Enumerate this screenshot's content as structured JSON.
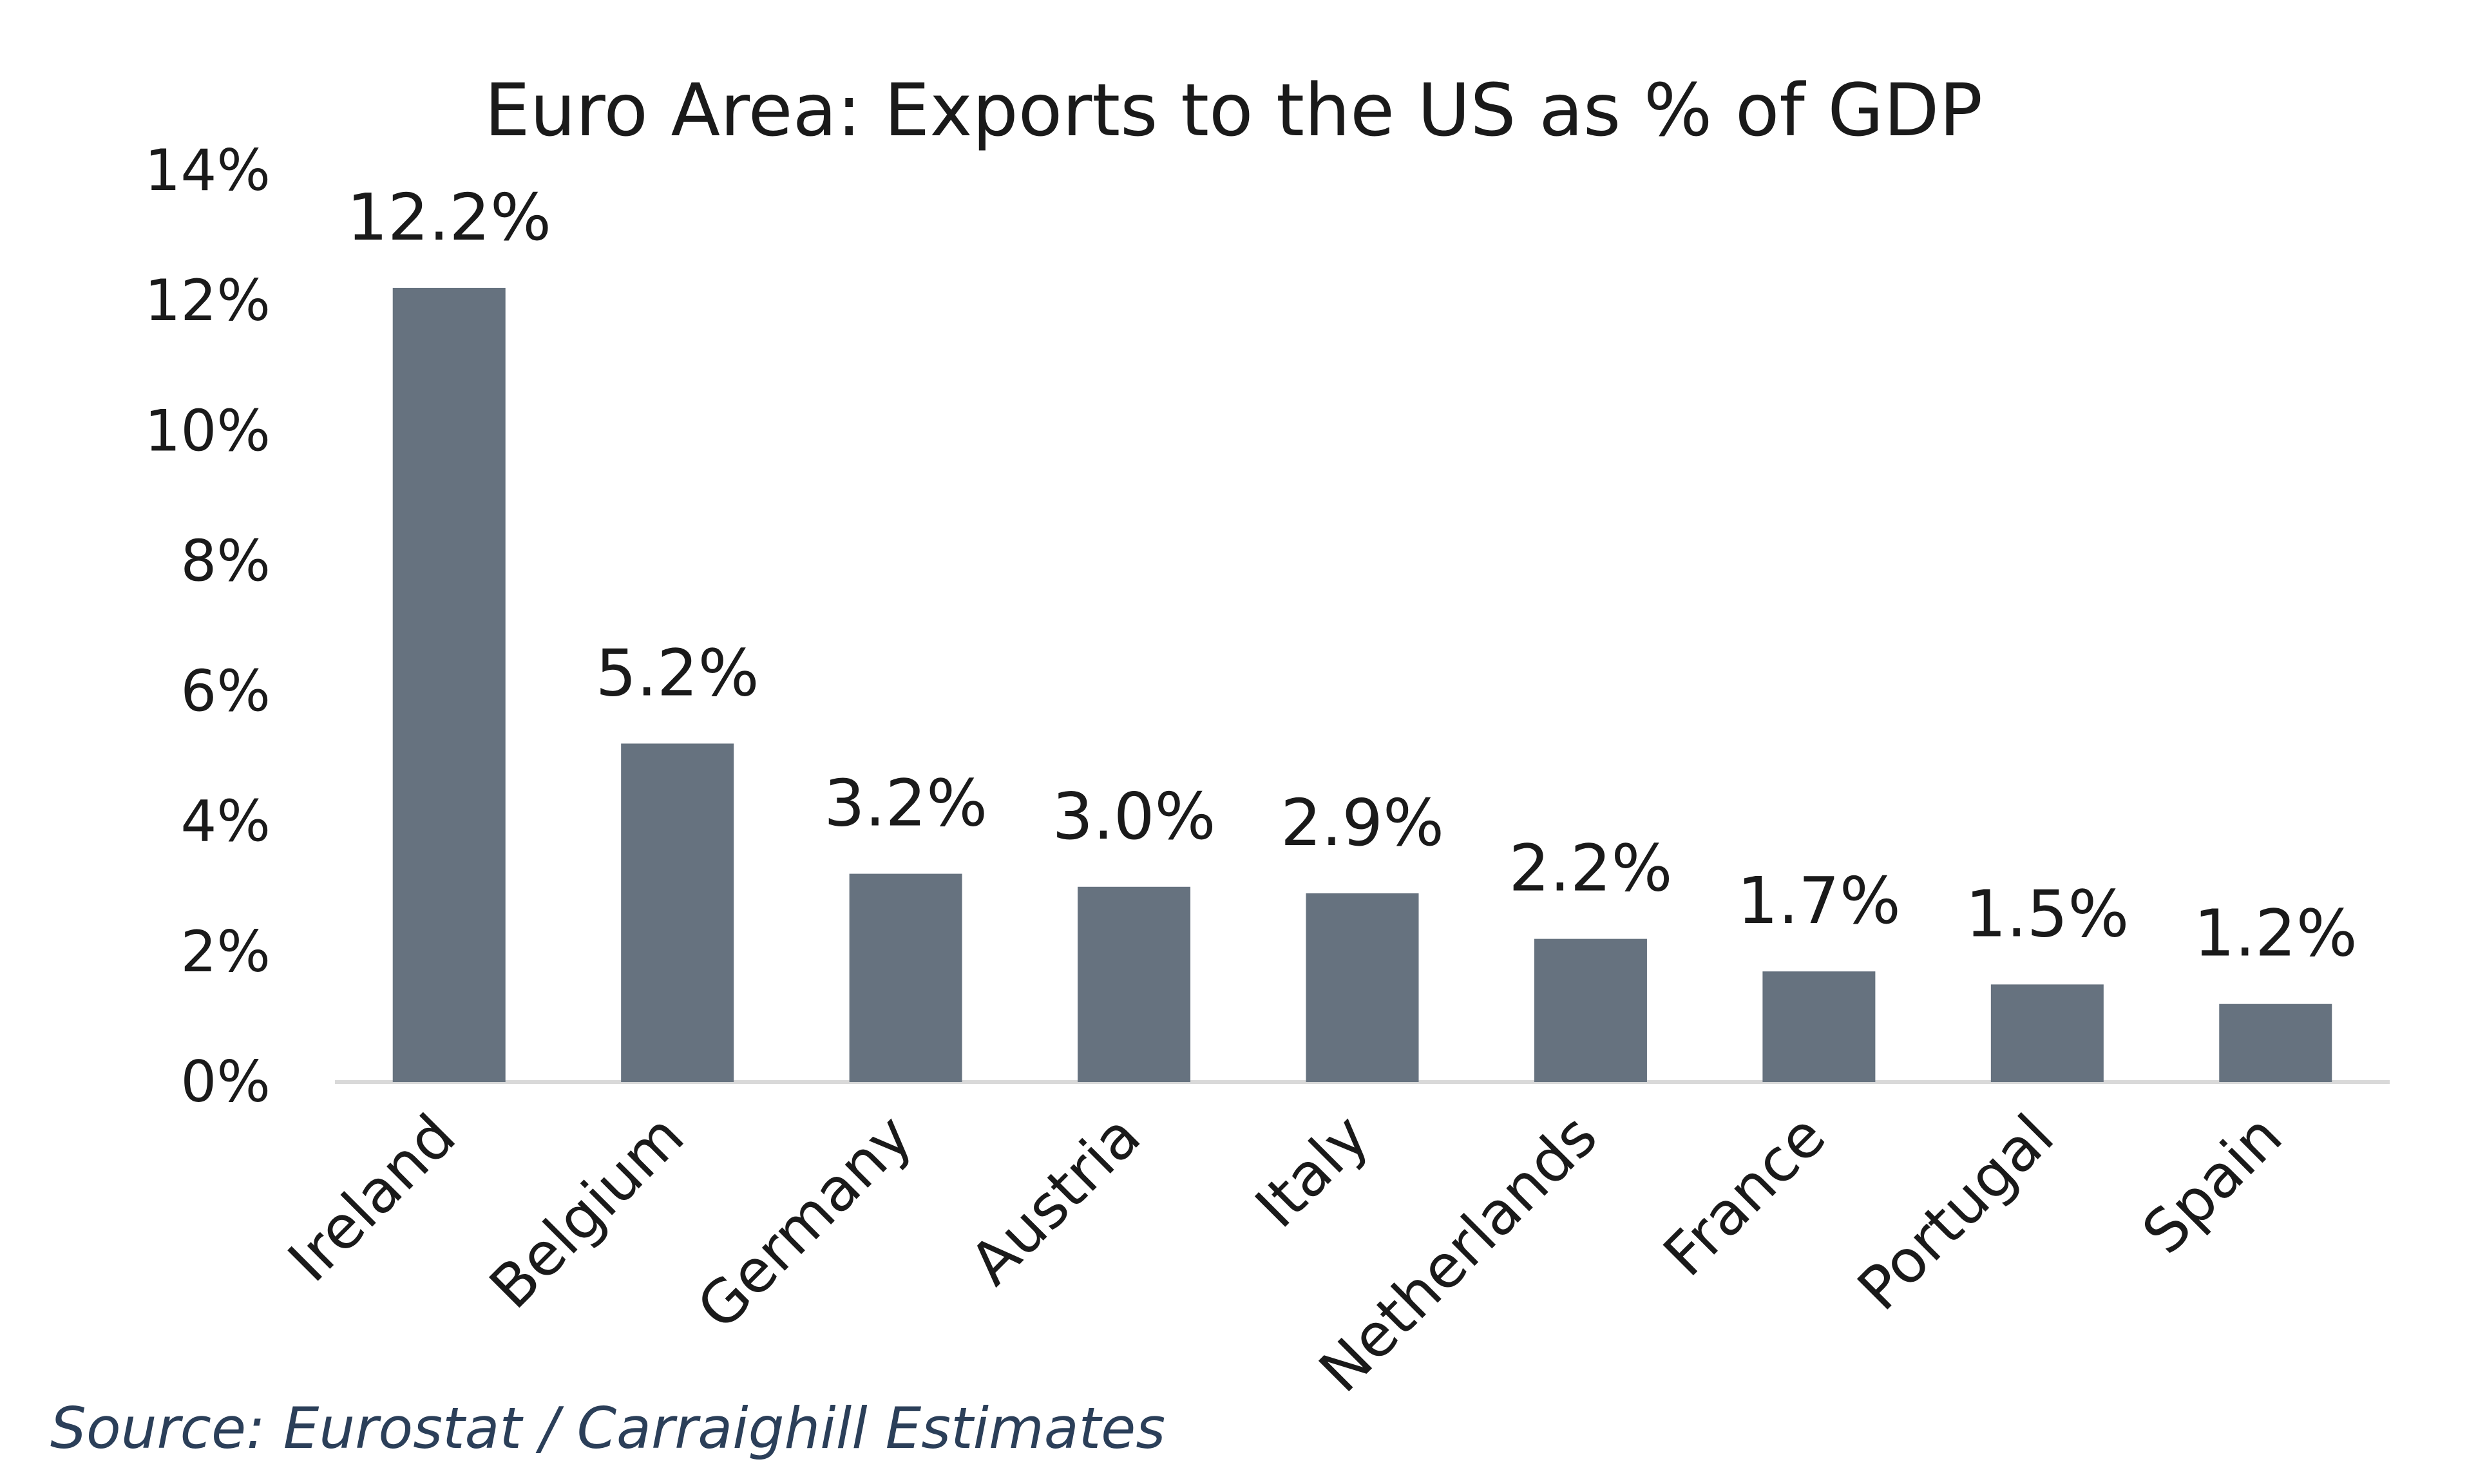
{
  "chart_data": {
    "type": "bar",
    "title": "Euro Area: Exports to the US as % of GDP",
    "xlabel": "",
    "ylabel": "",
    "ylim": [
      0,
      14
    ],
    "yticks": [
      0,
      2,
      4,
      6,
      8,
      10,
      12,
      14
    ],
    "ytick_suffix": "%",
    "categories": [
      "Ireland",
      "Belgium",
      "Germany",
      "Austria",
      "Italy",
      "Netherlands",
      "France",
      "Portugal",
      "Spain"
    ],
    "values": [
      12.2,
      5.2,
      3.2,
      3.0,
      2.9,
      2.2,
      1.7,
      1.5,
      1.2
    ],
    "data_labels": [
      "12.2%",
      "5.2%",
      "3.2%",
      "3.0%",
      "2.9%",
      "2.2%",
      "1.7%",
      "1.5%",
      "1.2%"
    ],
    "grid": false,
    "legend": "none",
    "bar_color": "#66727f",
    "axis_color": "#d9d9d9"
  },
  "source": "Source: Eurostat / Carraighill Estimates"
}
